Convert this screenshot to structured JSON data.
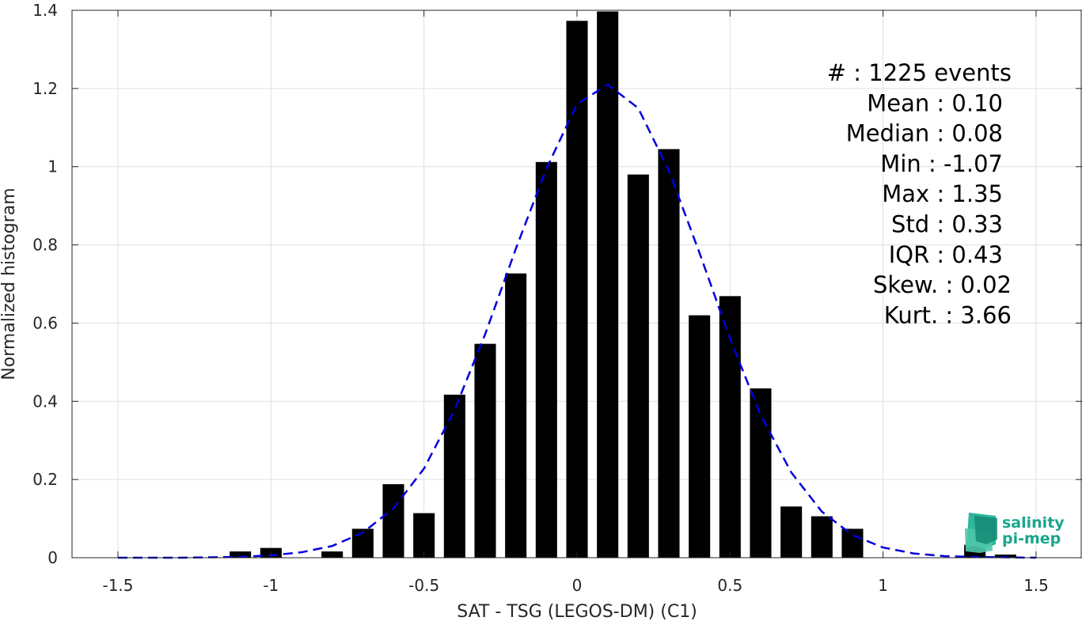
{
  "chart_data": {
    "type": "bar",
    "xlabel": "SAT - TSG (LEGOS-DM) (C1)",
    "ylabel": "Normalized histogram",
    "xlim": [
      -1.65,
      1.65
    ],
    "ylim": [
      0,
      1.4
    ],
    "xticks": [
      -1.5,
      -1,
      -0.5,
      0,
      0.5,
      1,
      1.5
    ],
    "xtick_labels": [
      "-1.5",
      "-1",
      "-0.5",
      "0",
      "0.5",
      "1",
      "1.5"
    ],
    "yticks": [
      0,
      0.2,
      0.4,
      0.6,
      0.8,
      1,
      1.2,
      1.4
    ],
    "ytick_labels": [
      "0",
      "0.2",
      "0.4",
      "0.6",
      "0.8",
      "1",
      "1.2",
      "1.4"
    ],
    "grid": true,
    "bar_width": 0.07,
    "bar_color": "#000000",
    "bins": [
      {
        "x": -1.1,
        "y": 0.016
      },
      {
        "x": -1.0,
        "y": 0.025
      },
      {
        "x": -0.8,
        "y": 0.016
      },
      {
        "x": -0.7,
        "y": 0.074
      },
      {
        "x": -0.6,
        "y": 0.188
      },
      {
        "x": -0.5,
        "y": 0.114
      },
      {
        "x": -0.4,
        "y": 0.417
      },
      {
        "x": -0.3,
        "y": 0.547
      },
      {
        "x": -0.2,
        "y": 0.727
      },
      {
        "x": -0.1,
        "y": 1.012
      },
      {
        "x": 0.0,
        "y": 1.373
      },
      {
        "x": 0.1,
        "y": 1.397
      },
      {
        "x": 0.2,
        "y": 0.98
      },
      {
        "x": 0.3,
        "y": 1.045
      },
      {
        "x": 0.4,
        "y": 0.62
      },
      {
        "x": 0.5,
        "y": 0.669
      },
      {
        "x": 0.6,
        "y": 0.433
      },
      {
        "x": 0.7,
        "y": 0.131
      },
      {
        "x": 0.8,
        "y": 0.106
      },
      {
        "x": 0.9,
        "y": 0.074
      },
      {
        "x": 1.3,
        "y": 0.033
      },
      {
        "x": 1.4,
        "y": 0.008
      }
    ],
    "fit_curve": {
      "color": "#0000dd",
      "style": "dashed",
      "points": [
        [
          -1.5,
          0.0
        ],
        [
          -1.3,
          0.0
        ],
        [
          -1.1,
          0.002
        ],
        [
          -1.0,
          0.006
        ],
        [
          -0.9,
          0.014
        ],
        [
          -0.8,
          0.03
        ],
        [
          -0.7,
          0.064
        ],
        [
          -0.6,
          0.126
        ],
        [
          -0.5,
          0.228
        ],
        [
          -0.4,
          0.378
        ],
        [
          -0.3,
          0.572
        ],
        [
          -0.2,
          0.79
        ],
        [
          -0.1,
          0.995
        ],
        [
          0.0,
          1.16
        ],
        [
          0.1,
          1.21
        ],
        [
          0.2,
          1.15
        ],
        [
          0.3,
          0.99
        ],
        [
          0.4,
          0.78
        ],
        [
          0.5,
          0.56
        ],
        [
          0.6,
          0.365
        ],
        [
          0.7,
          0.218
        ],
        [
          0.8,
          0.118
        ],
        [
          0.9,
          0.058
        ],
        [
          1.0,
          0.026
        ],
        [
          1.1,
          0.011
        ],
        [
          1.2,
          0.004
        ],
        [
          1.3,
          0.002
        ],
        [
          1.5,
          0.0
        ]
      ]
    },
    "annotations": [
      "#  : 1225 events",
      "Mean : 0.10",
      "Median : 0.08",
      "Min : -1.07",
      "Max : 1.35",
      "Std : 0.33",
      "IQR : 0.43",
      "Skew. : 0.02",
      "Kurt. : 3.66"
    ]
  },
  "logo": {
    "line1": "salinity",
    "line2": "pi-mep",
    "color": "#1aa58c"
  }
}
